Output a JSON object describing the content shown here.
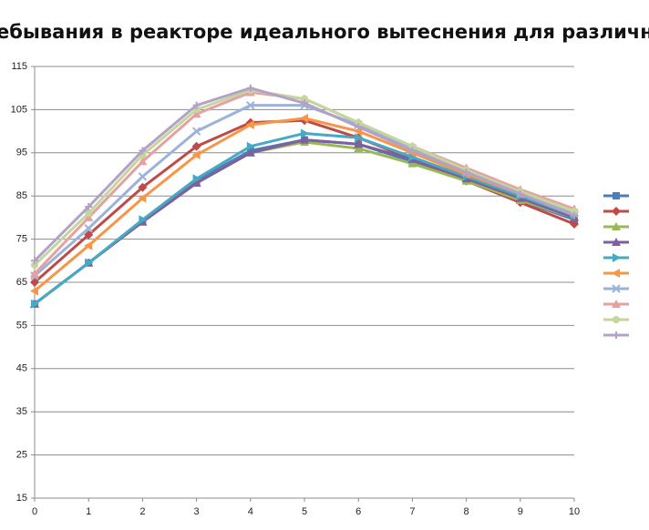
{
  "chart_data": {
    "type": "line",
    "title": "ебывания в реакторе идеального вытеснения для различных началь",
    "x": [
      0,
      1,
      2,
      3,
      4,
      5,
      6,
      7,
      8,
      9,
      10
    ],
    "xlim": [
      0,
      10
    ],
    "xticks": [
      0,
      1,
      2,
      3,
      4,
      5,
      6,
      7,
      8,
      9,
      10
    ],
    "ylim": [
      15,
      115
    ],
    "yticks": [
      15,
      25,
      35,
      45,
      55,
      65,
      75,
      85,
      95,
      105,
      115
    ],
    "grid": true,
    "legend": "right",
    "series": [
      {
        "color": "#4a7ebb",
        "values": [
          60,
          69.5,
          79,
          88.5,
          95.5,
          98,
          97,
          93,
          88.5,
          84,
          79.5
        ]
      },
      {
        "color": "#be4b48",
        "values": [
          65,
          76,
          87,
          96.5,
          102,
          102.5,
          98.5,
          93.5,
          88.5,
          83.5,
          78.5
        ]
      },
      {
        "color": "#98b954",
        "values": [
          60,
          69.5,
          79,
          88,
          95,
          97.5,
          96,
          92.5,
          88.5,
          84,
          80
        ]
      },
      {
        "color": "#7d60a0",
        "values": [
          60,
          69.5,
          79,
          88,
          95,
          98,
          97,
          93.5,
          89,
          84.5,
          80
        ]
      },
      {
        "color": "#46aac5",
        "values": [
          60,
          69.5,
          79.5,
          89,
          96.5,
          99.5,
          98.5,
          94,
          89.5,
          85,
          80.5
        ]
      },
      {
        "color": "#f79646",
        "values": [
          63,
          73.5,
          84.5,
          94.5,
          101.5,
          103,
          100,
          95,
          90,
          85.5,
          81
        ]
      },
      {
        "color": "#9bb2d9",
        "values": [
          66.5,
          77.5,
          89.5,
          100,
          106,
          106,
          101.5,
          96,
          90.5,
          85.5,
          81
        ]
      },
      {
        "color": "#e6a0a0",
        "values": [
          67,
          80,
          93,
          104,
          109,
          107.5,
          102,
          96.5,
          91.5,
          86.5,
          82
        ]
      },
      {
        "color": "#c3d69b",
        "values": [
          69,
          81,
          94.5,
          105,
          109.5,
          107.5,
          102,
          96.5,
          91,
          86,
          81.5
        ]
      },
      {
        "color": "#b3a2c7",
        "values": [
          70,
          82.5,
          95.5,
          106,
          110,
          106.5,
          101,
          95.5,
          90.5,
          85.5,
          80.5
        ]
      }
    ]
  }
}
